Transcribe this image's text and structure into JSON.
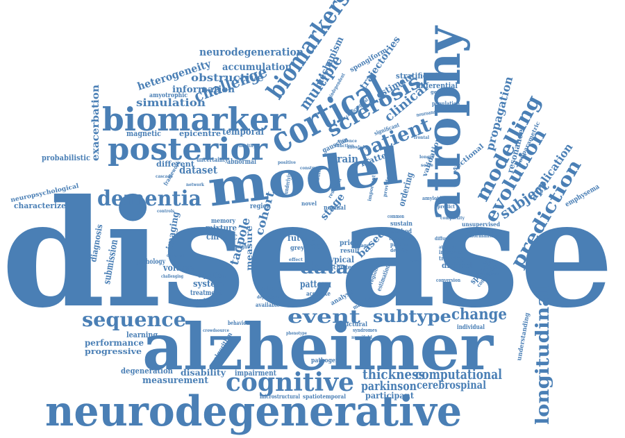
{
  "style": {
    "word_color": "#4a7fb5",
    "background": "#ffffff"
  },
  "words": {
    "disease": "disease",
    "alzheimer": "alzheimer",
    "neurodegenerative": "neurodegenerative",
    "model": "model",
    "biomarker": "biomarker",
    "posterior": "posterior",
    "atrophy": "atrophy",
    "cortical": "cortical",
    "cognitive": "cognitive",
    "dementia": "dementia",
    "sequence": "sequence",
    "subtype": "subtype",
    "event": "event",
    "data": "data",
    "longitudinal": "longitudinal",
    "modelling": "modelling",
    "evolution": "evolution",
    "prediction": "prediction",
    "patient": "patient",
    "sclerosis": "sclerosis",
    "biomarkers": "biomarkers",
    "multiple": "multiple",
    "challenge": "challenge",
    "change": "change",
    "thickness": "thickness",
    "computational": "computational",
    "parkinson": "parkinson",
    "cerebrospinal": "cerebrospinal",
    "participant": "participant",
    "subject": "subject",
    "application": "application",
    "propagation": "propagation",
    "neurodegeneration": "neurodegeneration",
    "accumulation": "accumulation",
    "heterogeneity": "heterogeneity",
    "obstructive": "obstructive",
    "information": "information",
    "simulation": "simulation",
    "amyotrophic": "amyotrophic",
    "mechanism": "mechanism",
    "trajectories": "trajectories",
    "spongiform": "spongiform",
    "stratification": "stratification",
    "estimate": "estimate",
    "differential": "differential",
    "clinical": "clinical",
    "magnetic": "magnetic",
    "epicentre": "epicentre",
    "temporal": "temporal",
    "exacerbation": "exacerbation",
    "probabilistic": "probabilistic",
    "dataset": "dataset",
    "uncertainty": "uncertainty",
    "abnormal": "abnormal",
    "brain": "brain",
    "matter": "matter",
    "different": "different",
    "framework": "framework",
    "neuropsychological": "neuropsychological",
    "characterize": "characterize",
    "imaging": "imaging",
    "cohort": "cohort",
    "stage": "stage",
    "tadpole": "tadpole",
    "measure": "measure",
    "based": "based",
    "memory": "memory",
    "mixture": "mixture",
    "chronic": "chronic",
    "future": "future",
    "grey": "grey",
    "cross": "cross",
    "typical": "typical",
    "pattern": "pattern",
    "volume": "volume",
    "equation": "equation",
    "system": "system",
    "treatment": "treatment",
    "ventricle": "ventricle",
    "feature": "feature",
    "accurate": "accurate",
    "diagnosis": "diagnosis",
    "submission": "submission",
    "pathology": "pathology",
    "learning": "learning",
    "performance": "performance",
    "progressive": "progressive",
    "degeneration": "degeneration",
    "measurement": "measurement",
    "disability": "disability",
    "impairment": "impairment",
    "algorithm": "algorithm",
    "pathogenic": "pathogenic",
    "structural": "structural",
    "microstructural": "microstructural",
    "spatiotemporal": "spatiotemporal",
    "understanding": "understanding",
    "individual": "individual",
    "distinct": "distinct",
    "sporadic": "sporadic",
    "community": "community",
    "emphysema": "emphysema",
    "unsupervised": "unsupervised",
    "abnormalities": "abnormalities",
    "inference": "inference",
    "trajectory": "trajectory",
    "sectional": "sectional",
    "resonance": "resonance",
    "nonparametric": "nonparametric",
    "population": "population",
    "sustain": "sustain",
    "method": "method",
    "transfer": "transfer",
    "present": "present",
    "density": "density",
    "ordering": "ordering",
    "validation": "validation",
    "gaussian": "gaussian",
    "insight": "insight",
    "prion": "prion",
    "normal": "normal",
    "result": "result",
    "behaviour": "behaviour",
    "available": "available",
    "estimation": "estimation",
    "regional": "regional",
    "analysis": "analysis",
    "machine": "machine",
    "cluster": "cluster",
    "image": "image",
    "region": "region",
    "novel": "novel",
    "predict": "predict",
    "amyloid": "amyloid",
    "significant": "significant",
    "independent": "independent",
    "corticospinal": "corticospinal",
    "neuroanatomical": "neuroanatomical",
    "genetic": "genetic",
    "common": "common",
    "atrophic": "atrophic",
    "diffusion": "diffusion",
    "conversion": "conversion",
    "dependent": "dependent",
    "syndromes": "syndromes",
    "phenotype": "phenotype",
    "crowdsource": "crowdsource",
    "manifold": "manifold",
    "underlying": "underlying",
    "studies": "studies",
    "evidence": "evidence",
    "knowledge": "knowledge",
    "complexity": "complexity",
    "cascade": "cascade",
    "healthy": "healthy",
    "longer": "longer",
    "scale": "scale",
    "effect": "effect",
    "function": "function",
    "provide": "provide",
    "important": "important",
    "research": "research",
    "construct": "construct",
    "positive": "positive",
    "multimodal": "multimodal",
    "degree": "degree",
    "challenging": "challenging",
    "dynamic": "dynamic",
    "network": "network",
    "controls": "controls",
    "frontal": "frontal",
    "scan": "scan"
  }
}
